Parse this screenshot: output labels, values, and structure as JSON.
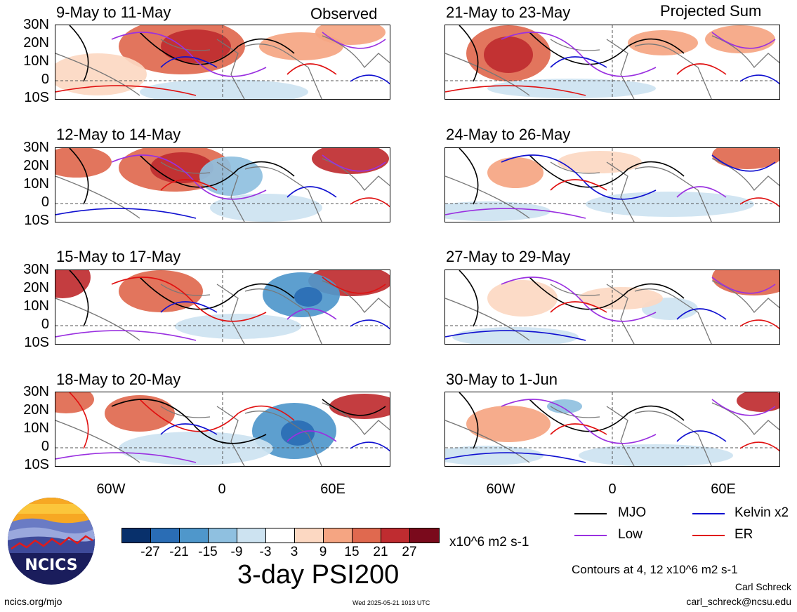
{
  "header": {
    "observed_label": "Observed",
    "projected_label": "Projected Sum"
  },
  "panels": [
    {
      "title": "9-May to 11-May"
    },
    {
      "title": "12-May to 14-May"
    },
    {
      "title": "15-May to 17-May"
    },
    {
      "title": "18-May to 20-May"
    },
    {
      "title": "21-May to 23-May"
    },
    {
      "title": "24-May to 26-May"
    },
    {
      "title": "27-May to 29-May"
    },
    {
      "title": "30-May to 1-Jun"
    }
  ],
  "lat_labels": [
    "30N",
    "20N",
    "10N",
    "0",
    "10S"
  ],
  "lon_labels": [
    "60W",
    "0",
    "60E"
  ],
  "colorbar": {
    "colors": [
      "#08306b",
      "#2a6db5",
      "#4f97cb",
      "#8fc0e0",
      "#cde3f1",
      "#ffffff",
      "#fcd8c2",
      "#f5a582",
      "#e0694f",
      "#bf2c30",
      "#7a0a1c"
    ],
    "ticks": [
      "-27",
      "-21",
      "-15",
      "-9",
      "-3",
      "3",
      "9",
      "15",
      "21",
      "27"
    ],
    "units": "x10^6 m2 s-1"
  },
  "title": "3-day PSI200",
  "legend": [
    {
      "label": "MJO",
      "color": "#000000"
    },
    {
      "label": "Kelvin x2",
      "color": "#1010d0"
    },
    {
      "label": "Low",
      "color": "#9a30e0"
    },
    {
      "label": "ER",
      "color": "#e01010"
    }
  ],
  "contours_note": "Contours at 4, 12 x10^6 m2 s-1",
  "author": "Carl Schreck",
  "email": "carl_schreck@ncsu.edu",
  "site": "ncics.org/mjo",
  "timestamp": "Wed 2025-05-21 1013 UTC",
  "logo_text": "NCICS"
}
